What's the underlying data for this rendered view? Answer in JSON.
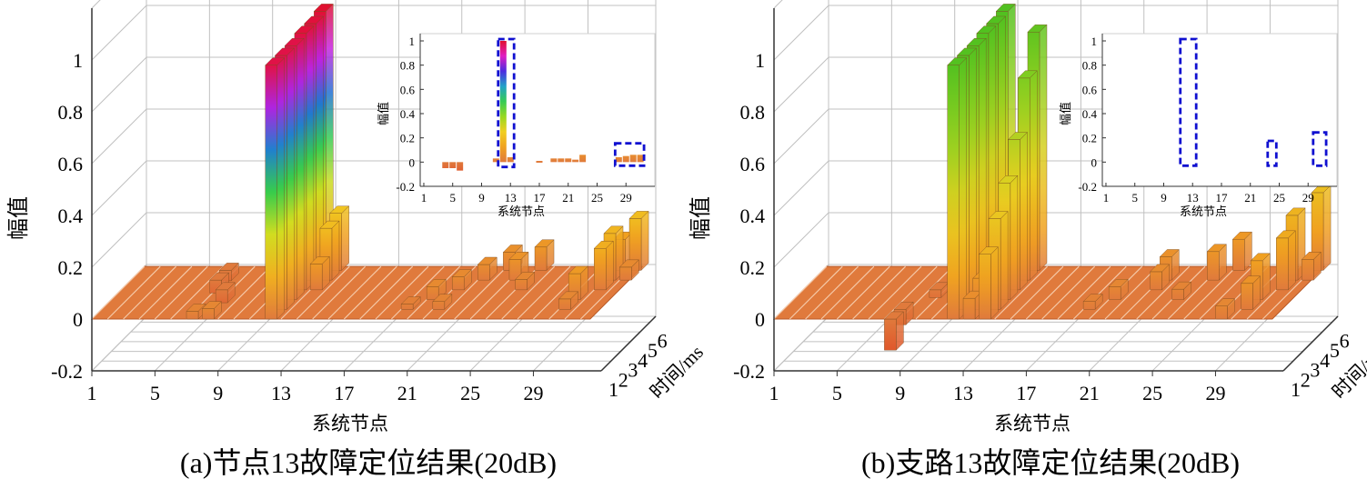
{
  "colors": {
    "base": "#e07a3c",
    "grid": "#c0c0c0",
    "axis": "#333333",
    "highlight_box": "#1010d0"
  },
  "chart_data": [
    {
      "type": "bar3d",
      "caption": "(a)节点13故障定位结果(20dB)",
      "xlabel": "系统节点",
      "ylabel": "时间/ms",
      "zlabel": "幅值",
      "x_ticks": [
        "1",
        "5",
        "9",
        "13",
        "17",
        "21",
        "25",
        "29"
      ],
      "y_ticks": [
        "1",
        "2",
        "3",
        "4",
        "5",
        "6"
      ],
      "z_ticks": [
        "-0.2",
        "0",
        "0.2",
        "0.4",
        "0.6",
        "0.8",
        "1"
      ],
      "zlim": [
        -0.2,
        1.0
      ],
      "nodes": 32,
      "times": 6,
      "bars": [
        {
          "node": 6,
          "time": 6,
          "z": -0.04
        },
        {
          "node": 6,
          "time": 5,
          "z": -0.05
        },
        {
          "node": 7,
          "time": 4,
          "z": -0.05
        },
        {
          "node": 7,
          "time": 1,
          "z": 0.03
        },
        {
          "node": 8,
          "time": 1,
          "z": 0.04
        },
        {
          "node": 12,
          "time": 1,
          "z": 0.98
        },
        {
          "node": 12,
          "time": 2,
          "z": 0.98
        },
        {
          "node": 12,
          "time": 3,
          "z": 0.98
        },
        {
          "node": 12,
          "time": 4,
          "z": 0.99
        },
        {
          "node": 12,
          "time": 5,
          "z": 0.99
        },
        {
          "node": 12,
          "time": 6,
          "z": 1.0
        },
        {
          "node": 13,
          "time": 6,
          "z": 0.22
        },
        {
          "node": 13,
          "time": 5,
          "z": 0.2
        },
        {
          "node": 13,
          "time": 4,
          "z": 0.1
        },
        {
          "node": 20,
          "time": 2,
          "z": 0.02
        },
        {
          "node": 21,
          "time": 3,
          "z": 0.05
        },
        {
          "node": 22,
          "time": 4,
          "z": 0.05
        },
        {
          "node": 23,
          "time": 5,
          "z": 0.06
        },
        {
          "node": 24,
          "time": 6,
          "z": 0.07
        },
        {
          "node": 22,
          "time": 2,
          "z": 0.03
        },
        {
          "node": 25,
          "time": 5,
          "z": 0.08
        },
        {
          "node": 26,
          "time": 6,
          "z": 0.09
        },
        {
          "node": 26,
          "time": 4,
          "z": 0.04
        },
        {
          "node": 30,
          "time": 2,
          "z": 0.04
        },
        {
          "node": 30,
          "time": 3,
          "z": 0.1
        },
        {
          "node": 31,
          "time": 4,
          "z": 0.16
        },
        {
          "node": 31,
          "time": 5,
          "z": 0.18
        },
        {
          "node": 32,
          "time": 6,
          "z": 0.2
        },
        {
          "node": 31,
          "time": 6,
          "z": 0.12
        },
        {
          "node": 32,
          "time": 5,
          "z": 0.05
        }
      ],
      "inset": {
        "xlabel": "系统节点",
        "ylabel": "幅值",
        "x_ticks": [
          "1",
          "5",
          "9",
          "13",
          "17",
          "21",
          "25",
          "29"
        ],
        "y_ticks": [
          "-0.2",
          "0",
          "0.2",
          "0.4",
          "0.6",
          "0.8",
          "1"
        ],
        "ylim": [
          -0.2,
          1.0
        ],
        "values": [
          {
            "node": 4,
            "z": -0.05
          },
          {
            "node": 5,
            "z": -0.05
          },
          {
            "node": 6,
            "z": -0.07
          },
          {
            "node": 11,
            "z": 0.03
          },
          {
            "node": 12,
            "z": 1.0
          },
          {
            "node": 13,
            "z": 0.04
          },
          {
            "node": 17,
            "z": 0.01
          },
          {
            "node": 19,
            "z": 0.03
          },
          {
            "node": 20,
            "z": 0.03
          },
          {
            "node": 21,
            "z": 0.03
          },
          {
            "node": 22,
            "z": 0.02
          },
          {
            "node": 23,
            "z": 0.06
          },
          {
            "node": 28,
            "z": 0.04
          },
          {
            "node": 29,
            "z": 0.05
          },
          {
            "node": 30,
            "z": 0.06
          },
          {
            "node": 31,
            "z": 0.06
          }
        ],
        "boxes": [
          {
            "from": 11.3,
            "to": 13.5,
            "z0": -0.01,
            "z1": 1.0
          },
          {
            "from": 27.5,
            "to": 31.5,
            "z0": 0.0,
            "z1": 0.14
          }
        ]
      }
    },
    {
      "type": "bar3d",
      "caption": "(b)支路13故障定位结果(20dB)",
      "xlabel": "系统节点",
      "ylabel": "时间/ms",
      "zlabel": "幅值",
      "x_ticks": [
        "1",
        "5",
        "9",
        "13",
        "17",
        "21",
        "25",
        "29"
      ],
      "y_ticks": [
        "1",
        "2",
        "3",
        "4",
        "5",
        "6"
      ],
      "z_ticks": [
        "-0.2",
        "0",
        "0.2",
        "0.4",
        "0.6",
        "0.8",
        "1"
      ],
      "zlim": [
        -0.2,
        1.0
      ],
      "nodes": 32,
      "times": 6,
      "bars": [
        {
          "node": 8,
          "time": 1,
          "z": -0.12
        },
        {
          "node": 8,
          "time": 2,
          "z": -0.06
        },
        {
          "node": 9,
          "time": 4,
          "z": -0.03
        },
        {
          "node": 12,
          "time": 1,
          "z": 0.98
        },
        {
          "node": 12,
          "time": 2,
          "z": 0.98
        },
        {
          "node": 12,
          "time": 3,
          "z": 0.98
        },
        {
          "node": 12,
          "time": 4,
          "z": 0.99
        },
        {
          "node": 12,
          "time": 5,
          "z": 0.99
        },
        {
          "node": 12,
          "time": 6,
          "z": 1.0
        },
        {
          "node": 13,
          "time": 1,
          "z": 0.08
        },
        {
          "node": 13,
          "time": 2,
          "z": 0.12
        },
        {
          "node": 13,
          "time": 3,
          "z": 0.15
        },
        {
          "node": 14,
          "time": 1,
          "z": 0.25
        },
        {
          "node": 14,
          "time": 2,
          "z": 0.35
        },
        {
          "node": 14,
          "time": 3,
          "z": 0.45
        },
        {
          "node": 14,
          "time": 4,
          "z": 0.58
        },
        {
          "node": 14,
          "time": 5,
          "z": 0.78
        },
        {
          "node": 14,
          "time": 6,
          "z": 0.92
        },
        {
          "node": 20,
          "time": 2,
          "z": 0.03
        },
        {
          "node": 21,
          "time": 3,
          "z": 0.05
        },
        {
          "node": 23,
          "time": 4,
          "z": 0.07
        },
        {
          "node": 23,
          "time": 5,
          "z": 0.09
        },
        {
          "node": 25,
          "time": 3,
          "z": 0.04
        },
        {
          "node": 26,
          "time": 5,
          "z": 0.11
        },
        {
          "node": 27,
          "time": 6,
          "z": 0.12
        },
        {
          "node": 30,
          "time": 2,
          "z": 0.1
        },
        {
          "node": 30,
          "time": 3,
          "z": 0.15
        },
        {
          "node": 31,
          "time": 4,
          "z": 0.2
        },
        {
          "node": 31,
          "time": 5,
          "z": 0.25
        },
        {
          "node": 32,
          "time": 6,
          "z": 0.3
        },
        {
          "node": 32,
          "time": 5,
          "z": 0.08
        },
        {
          "node": 29,
          "time": 1,
          "z": 0.05
        }
      ],
      "inset": {
        "xlabel": "系统节点",
        "ylabel": "幅值",
        "x_ticks": [
          "1",
          "5",
          "9",
          "13",
          "17",
          "21",
          "25",
          "29"
        ],
        "y_ticks": [
          "-0.2",
          "0",
          "0.2",
          "0.4",
          "0.6",
          "0.8",
          "1"
        ],
        "ylim": [
          -0.2,
          1.0
        ],
        "values": [],
        "boxes": [
          {
            "from": 11.3,
            "to": 13.5,
            "z0": 0.0,
            "z1": 1.0
          },
          {
            "from": 23.4,
            "to": 24.6,
            "z0": 0.0,
            "z1": 0.16
          },
          {
            "from": 29.7,
            "to": 31.5,
            "z0": 0.0,
            "z1": 0.23
          }
        ]
      }
    }
  ]
}
